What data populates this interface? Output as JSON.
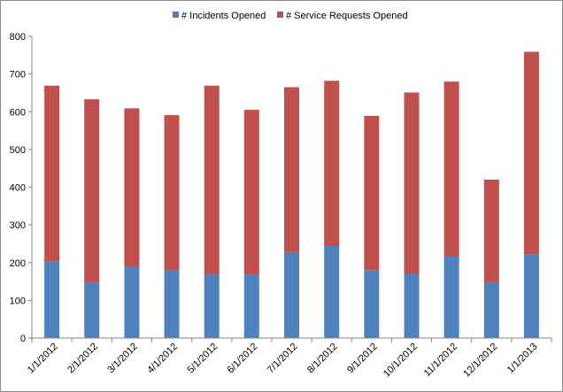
{
  "chart_data": {
    "type": "bar",
    "stacked": true,
    "categories": [
      "1/1/2012",
      "2/1/2012",
      "3/1/2012",
      "4/1/2012",
      "5/1/2012",
      "6/1/2012",
      "7/1/2012",
      "8/1/2012",
      "9/1/2012",
      "10/1/2012",
      "11/1/2012",
      "12/1/2012",
      "1/1/2013"
    ],
    "series": [
      {
        "name": "# Incidents Opened",
        "color": "#4f81bd",
        "values": [
          203,
          148,
          190,
          181,
          168,
          168,
          228,
          244,
          180,
          170,
          217,
          148,
          222
        ]
      },
      {
        "name": "# Service Requests Opened",
        "color": "#c0504d",
        "values": [
          466,
          485,
          419,
          410,
          501,
          437,
          437,
          438,
          409,
          481,
          463,
          272,
          537
        ]
      }
    ],
    "title": "",
    "xlabel": "",
    "ylabel": "",
    "ylim": [
      0,
      800
    ],
    "yticks": [
      "0",
      "100",
      "200",
      "300",
      "400",
      "500",
      "600",
      "700",
      "800"
    ],
    "grid": false,
    "legend_position": "top-center"
  }
}
